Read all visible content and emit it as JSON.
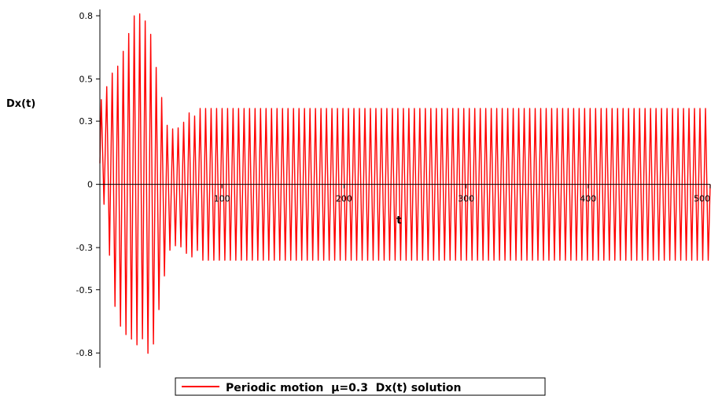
{
  "chart_data": {
    "type": "line",
    "title": "",
    "xlabel": "t",
    "ylabel": "Dx(t)",
    "xlim": [
      0,
      500
    ],
    "ylim": [
      -0.87,
      0.83
    ],
    "x_ticks": [
      100,
      200,
      300,
      400,
      500
    ],
    "x_tick_labels": [
      "100",
      "200",
      "300",
      "400",
      "500"
    ],
    "y_ticks": [
      0.8,
      0.5,
      0.3,
      0,
      -0.3,
      -0.5,
      -0.8
    ],
    "y_tick_labels": [
      "0.8",
      "0.5",
      "0.3",
      "0",
      "-0.3",
      "-0.5",
      "-0.8"
    ],
    "grid": false,
    "legend_position": "bottom-center",
    "series": [
      {
        "name": "Periodic motion  μ=0.3  Dx(t) solution",
        "color": "#ff0000",
        "t_start": 0,
        "t_end": 500,
        "oscillation_period": 4.5,
        "initial_value": 0.1,
        "envelope": [
          {
            "t": 0,
            "max": 0.45,
            "min": -0.1
          },
          {
            "t": 5,
            "max": 0.5,
            "min": -0.17
          },
          {
            "t": 10,
            "max": 0.53,
            "min": -0.5
          },
          {
            "t": 15,
            "max": 0.6,
            "min": -0.7
          },
          {
            "t": 22,
            "max": 0.75,
            "min": -0.78
          },
          {
            "t": 28,
            "max": 0.83,
            "min": -0.78
          },
          {
            "t": 35,
            "max": 0.81,
            "min": -0.76
          },
          {
            "t": 40,
            "max": 0.83,
            "min": -0.87
          },
          {
            "t": 45,
            "max": 0.65,
            "min": -0.8
          },
          {
            "t": 50,
            "max": 0.45,
            "min": -0.55
          },
          {
            "t": 55,
            "max": 0.3,
            "min": -0.35
          },
          {
            "t": 65,
            "max": 0.33,
            "min": -0.35
          },
          {
            "t": 80,
            "max": 0.36,
            "min": -0.36
          },
          {
            "t": 500,
            "max": 0.36,
            "min": -0.36
          }
        ]
      }
    ]
  }
}
